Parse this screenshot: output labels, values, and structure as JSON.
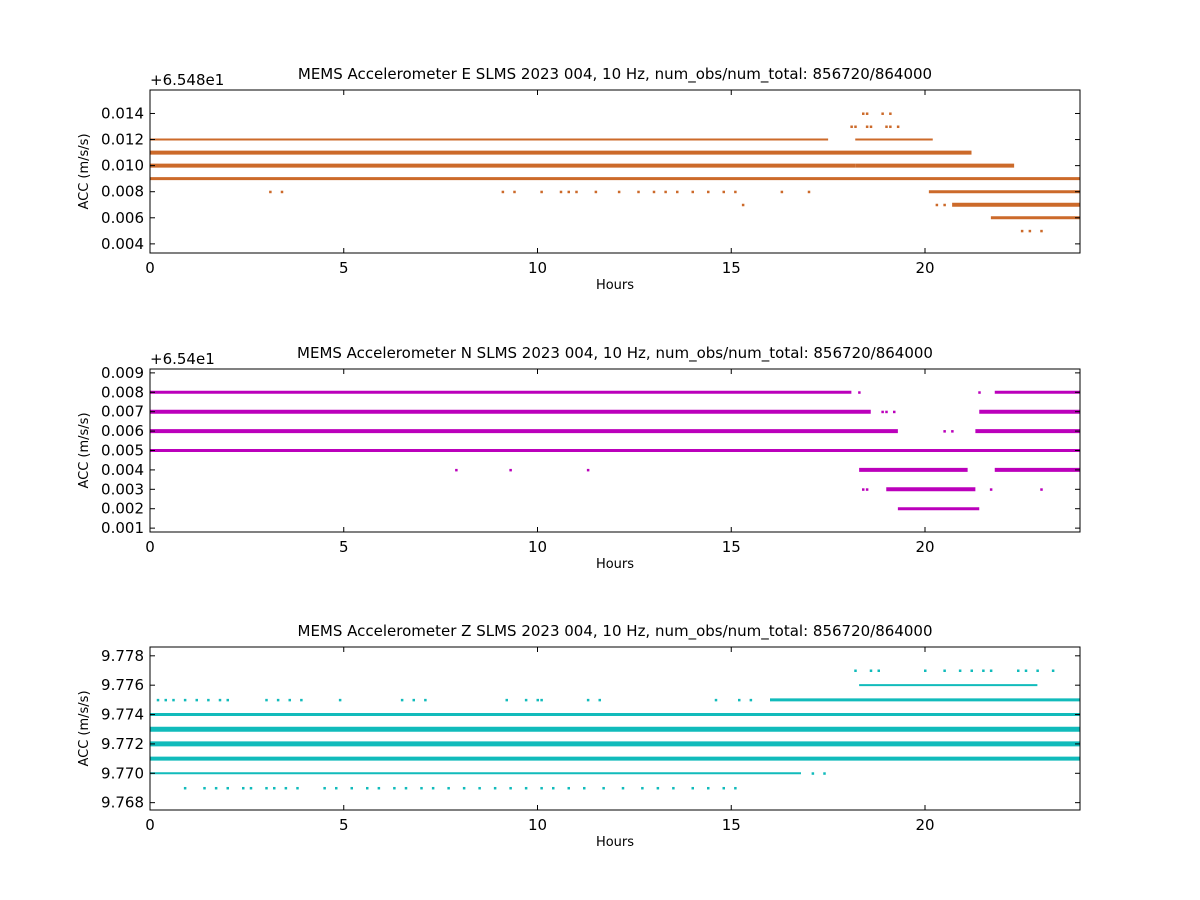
{
  "chart_data": [
    {
      "type": "scatter",
      "title": "MEMS Accelerometer E SLMS 2023 004, 10 Hz, num_obs/num_total: 856720/864000",
      "offset_label": "+6.548e1",
      "xlabel": "Hours",
      "ylabel": "ACC (m/s/s)",
      "xlim": [
        0,
        24
      ],
      "ylim": [
        0.0033,
        0.0158
      ],
      "xticks": [
        0,
        5,
        10,
        15,
        20
      ],
      "yticks": [
        0.004,
        0.006,
        0.008,
        0.01,
        0.012,
        0.014
      ],
      "ytick_labels": [
        "0.004",
        "0.006",
        "0.008",
        "0.010",
        "0.012",
        "0.014"
      ],
      "color": "#cc6a2a",
      "grid": false,
      "bands": [
        {
          "y": 0.012,
          "segments": [
            [
              0,
              17.5
            ],
            [
              18.2,
              20.2
            ]
          ],
          "weight": 2
        },
        {
          "y": 0.011,
          "segments": [
            [
              0,
              21.2
            ]
          ],
          "weight": 4
        },
        {
          "y": 0.01,
          "segments": [
            [
              0,
              18.2
            ],
            [
              18.2,
              22.3
            ]
          ],
          "weight": 4
        },
        {
          "y": 0.009,
          "segments": [
            [
              0,
              24
            ]
          ],
          "weight": 3
        },
        {
          "y": 0.008,
          "segments": [
            [
              20.1,
              24
            ]
          ],
          "weight": 3
        },
        {
          "y": 0.007,
          "segments": [
            [
              20.7,
              24
            ]
          ],
          "weight": 4
        },
        {
          "y": 0.006,
          "segments": [
            [
              21.7,
              24
            ]
          ],
          "weight": 3
        }
      ],
      "scatter": [
        {
          "y": 0.014,
          "x": [
            18.4,
            18.5,
            18.9,
            19.1
          ]
        },
        {
          "y": 0.013,
          "x": [
            18.1,
            18.2,
            18.5,
            18.6,
            19.0,
            19.1,
            19.3
          ]
        },
        {
          "y": 0.008,
          "x": [
            3.1,
            3.4,
            9.1,
            9.4,
            10.1,
            10.6,
            10.8,
            11.0,
            11.5,
            12.1,
            12.6,
            13.0,
            13.3,
            13.6,
            14.0,
            14.4,
            14.8,
            15.1,
            16.3,
            17.0
          ]
        },
        {
          "y": 0.007,
          "x": [
            15.3,
            20.3,
            20.5
          ]
        },
        {
          "y": 0.005,
          "x": [
            22.5,
            22.7,
            23.0
          ]
        }
      ]
    },
    {
      "type": "scatter",
      "title": "MEMS Accelerometer N SLMS 2023 004, 10 Hz, num_obs/num_total: 856720/864000",
      "offset_label": "+6.54e1",
      "xlabel": "Hours",
      "ylabel": "ACC (m/s/s)",
      "xlim": [
        0,
        24
      ],
      "ylim": [
        0.0008,
        0.0092
      ],
      "xticks": [
        0,
        5,
        10,
        15,
        20
      ],
      "yticks": [
        0.001,
        0.002,
        0.003,
        0.004,
        0.005,
        0.006,
        0.007,
        0.008,
        0.009
      ],
      "ytick_labels": [
        "0.001",
        "0.002",
        "0.003",
        "0.004",
        "0.005",
        "0.006",
        "0.007",
        "0.008",
        "0.009"
      ],
      "color": "#bb00bb",
      "grid": false,
      "bands": [
        {
          "y": 0.008,
          "segments": [
            [
              0,
              18.1
            ],
            [
              21.8,
              24
            ]
          ],
          "weight": 3
        },
        {
          "y": 0.007,
          "segments": [
            [
              0,
              18.6
            ],
            [
              21.4,
              24
            ]
          ],
          "weight": 4
        },
        {
          "y": 0.006,
          "segments": [
            [
              0,
              19.3
            ],
            [
              21.3,
              24
            ]
          ],
          "weight": 4
        },
        {
          "y": 0.005,
          "segments": [
            [
              0,
              24
            ]
          ],
          "weight": 3
        },
        {
          "y": 0.004,
          "segments": [
            [
              18.3,
              21.1
            ],
            [
              21.8,
              24
            ]
          ],
          "weight": 4
        },
        {
          "y": 0.003,
          "segments": [
            [
              19.0,
              21.3
            ]
          ],
          "weight": 4
        },
        {
          "y": 0.002,
          "segments": [
            [
              19.3,
              21.4
            ]
          ],
          "weight": 3
        }
      ],
      "scatter": [
        {
          "y": 0.007,
          "x": [
            18.9,
            19.0,
            19.2
          ]
        },
        {
          "y": 0.006,
          "x": [
            20.5,
            20.7
          ]
        },
        {
          "y": 0.004,
          "x": [
            7.9,
            9.3,
            11.3
          ]
        },
        {
          "y": 0.003,
          "x": [
            18.4,
            18.5,
            21.7,
            23.0
          ]
        },
        {
          "y": 0.008,
          "x": [
            18.3,
            21.4
          ]
        }
      ]
    },
    {
      "type": "scatter",
      "title": "MEMS Accelerometer Z SLMS 2023 004, 10 Hz, num_obs/num_total: 856720/864000",
      "offset_label": "",
      "xlabel": "Hours",
      "ylabel": "ACC (m/s/s)",
      "xlim": [
        0,
        24
      ],
      "ylim": [
        9.7675,
        9.7786
      ],
      "xticks": [
        0,
        5,
        10,
        15,
        20
      ],
      "yticks": [
        9.768,
        9.77,
        9.772,
        9.774,
        9.776,
        9.778
      ],
      "ytick_labels": [
        "9.768",
        "9.770",
        "9.772",
        "9.774",
        "9.776",
        "9.778"
      ],
      "color": "#11bbbb",
      "grid": false,
      "bands": [
        {
          "y": 9.775,
          "segments": [
            [
              16.0,
              24
            ]
          ],
          "weight": 3
        },
        {
          "y": 9.774,
          "segments": [
            [
              0,
              24
            ]
          ],
          "weight": 3
        },
        {
          "y": 9.773,
          "segments": [
            [
              0,
              24
            ]
          ],
          "weight": 5
        },
        {
          "y": 9.772,
          "segments": [
            [
              0,
              24
            ]
          ],
          "weight": 5
        },
        {
          "y": 9.771,
          "segments": [
            [
              0,
              24
            ]
          ],
          "weight": 4
        },
        {
          "y": 9.77,
          "segments": [
            [
              0,
              16.8
            ]
          ],
          "weight": 2
        },
        {
          "y": 9.776,
          "segments": [
            [
              18.3,
              22.9
            ]
          ],
          "weight": 2
        }
      ],
      "scatter": [
        {
          "y": 9.777,
          "x": [
            18.2,
            18.6,
            18.8,
            20.0,
            20.5,
            20.9,
            21.2,
            21.5,
            21.7,
            22.4,
            22.6,
            22.9,
            23.3
          ]
        },
        {
          "y": 9.775,
          "x": [
            0.2,
            0.4,
            0.6,
            0.9,
            1.2,
            1.5,
            1.8,
            2.0,
            3.0,
            3.3,
            3.6,
            3.9,
            4.9,
            6.5,
            6.8,
            7.1,
            9.2,
            9.7,
            10.0,
            10.1,
            11.3,
            11.6,
            14.6,
            15.2,
            15.5
          ]
        },
        {
          "y": 9.77,
          "x": [
            17.1,
            17.4
          ]
        },
        {
          "y": 9.769,
          "x": [
            0.9,
            1.4,
            1.7,
            2.0,
            2.4,
            2.6,
            3.0,
            3.2,
            3.5,
            3.8,
            4.5,
            4.8,
            5.2,
            5.6,
            5.9,
            6.3,
            6.6,
            7.0,
            7.3,
            7.7,
            8.1,
            8.5,
            8.9,
            9.3,
            9.7,
            10.1,
            10.4,
            10.8,
            11.2,
            11.7,
            12.2,
            12.7,
            13.1,
            13.5,
            14.0,
            14.4,
            14.8,
            15.1
          ]
        }
      ]
    }
  ]
}
